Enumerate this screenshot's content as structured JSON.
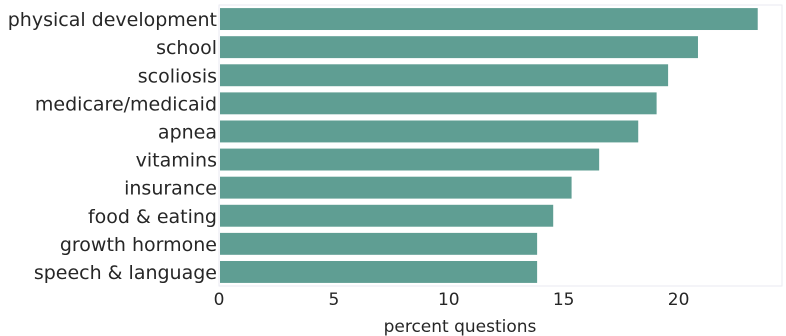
{
  "chart_data": {
    "type": "bar",
    "orientation": "horizontal",
    "categories": [
      "physical development",
      "school",
      "scoliosis",
      "medicare/medicaid",
      "apnea",
      "vitamins",
      "insurance",
      "food & eating",
      "growth hormone",
      "speech & language"
    ],
    "values": [
      23.4,
      20.8,
      19.5,
      19.0,
      18.2,
      16.5,
      15.3,
      14.5,
      13.8,
      13.8
    ],
    "xlabel": "percent questions",
    "ylabel": "",
    "xticks": [
      0,
      5,
      10,
      15,
      20
    ],
    "xlim": [
      0,
      24.5
    ],
    "grid": false,
    "bar_color": "#5f9e93",
    "frame_color": "#eaeaf2"
  }
}
